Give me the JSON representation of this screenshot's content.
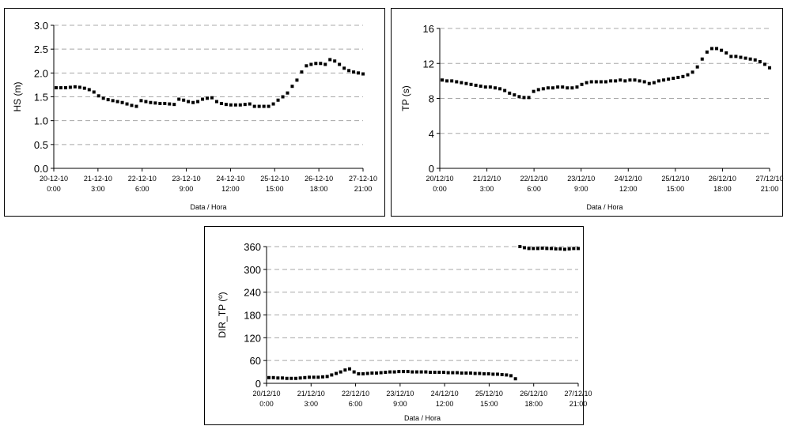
{
  "chart_data": [
    {
      "id": "hs",
      "type": "scatter",
      "ylabel": "HS (m)",
      "xlabel": "Data / Hora",
      "ylim": [
        0,
        3.0
      ],
      "yticks": [
        "0.0",
        "0.5",
        "1.0",
        "1.5",
        "2.0",
        "2.5",
        "3.0"
      ],
      "xlim": [
        0,
        7
      ],
      "xticks": [
        {
          "date": "20-12-10",
          "time": "0:00"
        },
        {
          "date": "21-12-10",
          "time": "3:00"
        },
        {
          "date": "22-12-10",
          "time": "6:00"
        },
        {
          "date": "23-12-10",
          "time": "9:00"
        },
        {
          "date": "24-12-10",
          "time": "12:00"
        },
        {
          "date": "25-12-10",
          "time": "15:00"
        },
        {
          "date": "26-12-10",
          "time": "18:00"
        },
        {
          "date": "27-12-10",
          "time": "21:00"
        }
      ],
      "grid": "horizontal dashed",
      "marker_color": "#000000",
      "series": [
        {
          "values": [
            1.69,
            1.69,
            1.69,
            1.7,
            1.71,
            1.7,
            1.68,
            1.65,
            1.6,
            1.52,
            1.47,
            1.44,
            1.42,
            1.4,
            1.38,
            1.35,
            1.32,
            1.3,
            1.42,
            1.4,
            1.38,
            1.37,
            1.36,
            1.36,
            1.35,
            1.34,
            1.45,
            1.43,
            1.4,
            1.38,
            1.4,
            1.45,
            1.47,
            1.48,
            1.4,
            1.36,
            1.34,
            1.33,
            1.33,
            1.33,
            1.34,
            1.35,
            1.3,
            1.3,
            1.3,
            1.3,
            1.35,
            1.43,
            1.5,
            1.58,
            1.72,
            1.85,
            2.02,
            2.15,
            2.18,
            2.2,
            2.2,
            2.18,
            2.28,
            2.25,
            2.18,
            2.1,
            2.05,
            2.02,
            2.0,
            1.98
          ]
        }
      ]
    },
    {
      "id": "tp",
      "type": "scatter",
      "ylabel": "TP (s)",
      "xlabel": "Data / Hora",
      "ylim": [
        0,
        16
      ],
      "yticks": [
        "0",
        "4",
        "8",
        "12",
        "16"
      ],
      "xlim": [
        0,
        7
      ],
      "xticks": [
        {
          "date": "20/12/10",
          "time": "0:00"
        },
        {
          "date": "21/12/10",
          "time": "3:00"
        },
        {
          "date": "22/12/10",
          "time": "6:00"
        },
        {
          "date": "23/12/10",
          "time": "9:00"
        },
        {
          "date": "24/12/10",
          "time": "12:00"
        },
        {
          "date": "25/12/10",
          "time": "15:00"
        },
        {
          "date": "26/12/10",
          "time": "18:00"
        },
        {
          "date": "27/12/10",
          "time": "21:00"
        }
      ],
      "grid": "horizontal dashed",
      "marker_color": "#000000",
      "series": [
        {
          "values": [
            10.1,
            10.0,
            10.0,
            9.9,
            9.8,
            9.7,
            9.6,
            9.5,
            9.4,
            9.3,
            9.3,
            9.2,
            9.1,
            8.9,
            8.6,
            8.4,
            8.2,
            8.1,
            8.1,
            8.8,
            9.0,
            9.1,
            9.2,
            9.2,
            9.3,
            9.3,
            9.2,
            9.2,
            9.3,
            9.6,
            9.8,
            9.9,
            9.9,
            9.9,
            9.9,
            10.0,
            10.0,
            10.1,
            10.0,
            10.1,
            10.1,
            10.0,
            9.9,
            9.7,
            9.8,
            10.0,
            10.1,
            10.2,
            10.3,
            10.4,
            10.5,
            10.7,
            11.0,
            11.6,
            12.5,
            13.3,
            13.7,
            13.7,
            13.5,
            13.2,
            12.8,
            12.8,
            12.7,
            12.6,
            12.5,
            12.4,
            12.2,
            11.9,
            11.5
          ]
        }
      ]
    },
    {
      "id": "dir",
      "type": "scatter",
      "ylabel": "DIR_TP (º)",
      "xlabel": "Data / Hora",
      "ylim": [
        0,
        360
      ],
      "yticks": [
        "0",
        "60",
        "120",
        "180",
        "240",
        "300",
        "360"
      ],
      "xlim": [
        0,
        7
      ],
      "xticks": [
        {
          "date": "20/12/10",
          "time": "0:00"
        },
        {
          "date": "21/12/10",
          "time": "3:00"
        },
        {
          "date": "22/12/10",
          "time": "6:00"
        },
        {
          "date": "23/12/10",
          "time": "9:00"
        },
        {
          "date": "24/12/10",
          "time": "12:00"
        },
        {
          "date": "25/12/10",
          "time": "15:00"
        },
        {
          "date": "26/12/10",
          "time": "18:00"
        },
        {
          "date": "27/12/10",
          "time": "21:00"
        }
      ],
      "grid": "horizontal dashed",
      "marker_color": "#000000",
      "series": [
        {
          "values": [
            15,
            15,
            14,
            14,
            13,
            13,
            13,
            14,
            15,
            16,
            16,
            16,
            17,
            18,
            22,
            26,
            30,
            35,
            38,
            30,
            25,
            25,
            26,
            27,
            27,
            28,
            29,
            30,
            30,
            31,
            31,
            31,
            30,
            30,
            30,
            30,
            29,
            29,
            29,
            29,
            28,
            28,
            28,
            27,
            27,
            27,
            26,
            26,
            25,
            25,
            24,
            24,
            23,
            22,
            20,
            12,
            360,
            357,
            355,
            355,
            355,
            356,
            355,
            355,
            354,
            354,
            353,
            354,
            355,
            355
          ]
        }
      ]
    }
  ]
}
